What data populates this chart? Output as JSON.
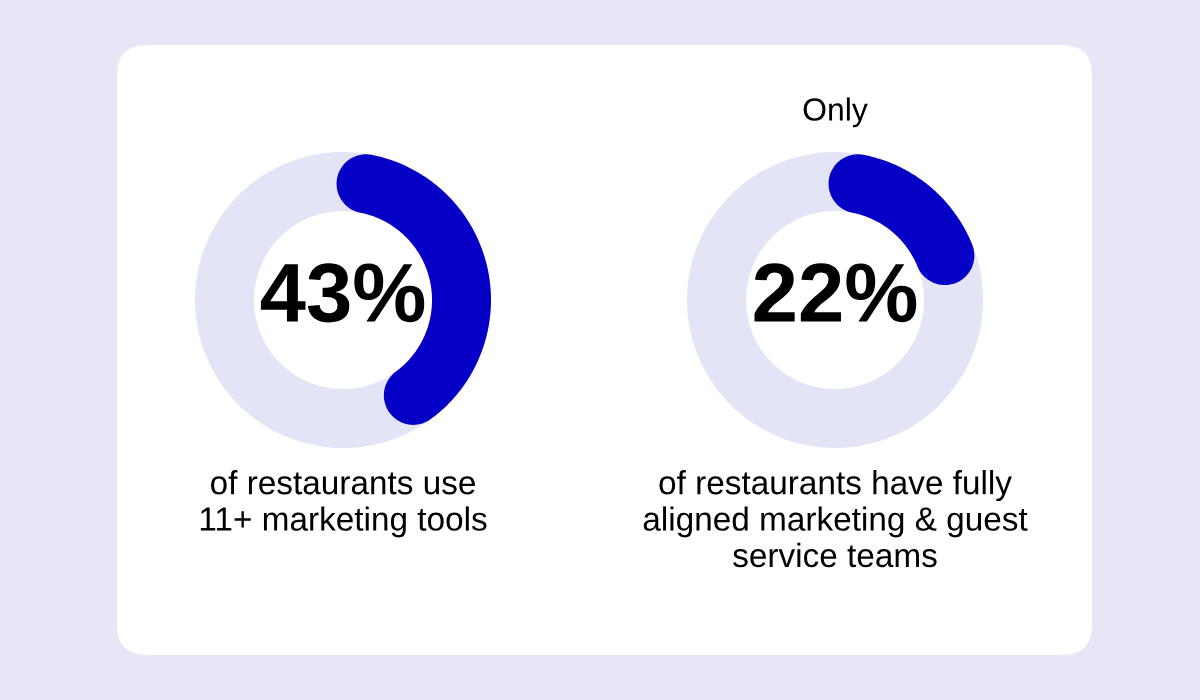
{
  "chart_data": [
    {
      "type": "donut",
      "categories": [
        null,
        null
      ],
      "values": [
        43,
        57
      ],
      "colors": [
        "#0600c6",
        "#e4e4f7"
      ],
      "value_labels": [
        "43%",
        null
      ],
      "annotations": [
        "of restaurants use\n11+ marketing tools"
      ]
    },
    {
      "type": "donut",
      "title": "Only",
      "categories": [
        null,
        null
      ],
      "values": [
        22,
        78
      ],
      "colors": [
        "#0600c6",
        "#e4e4f7"
      ],
      "value_labels": [
        "22%",
        null
      ],
      "annotations": [
        "of restaurants have fully\naligned marketing & guest\nservice teams"
      ]
    }
  ]
}
